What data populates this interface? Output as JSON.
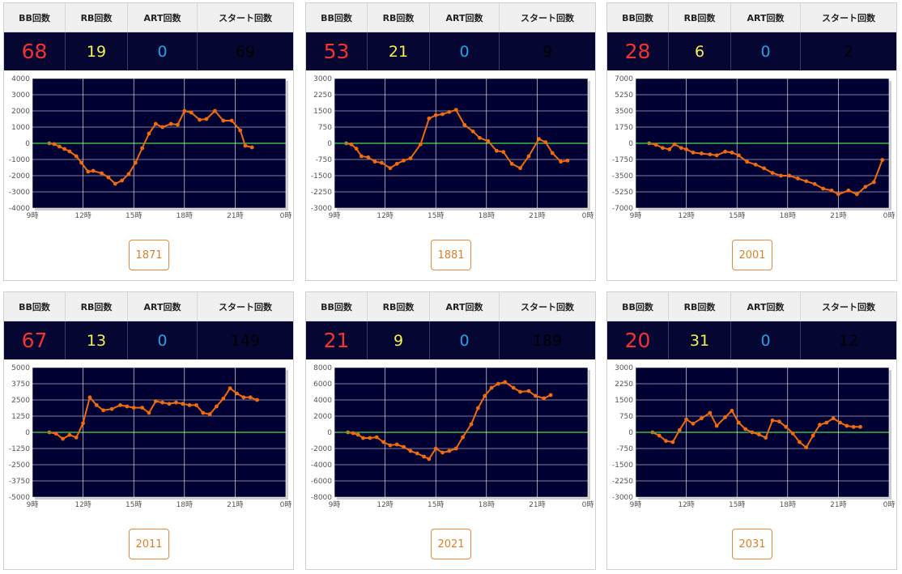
{
  "headers": {
    "bb": "BB回数",
    "rb": "RB回数",
    "art": "ART回数",
    "start": "スタート回数"
  },
  "colors": {
    "plot_bg": "#000033",
    "line": "#f06a10",
    "zero_line": "#44dd44",
    "button": "#e38a3c",
    "bb": "#f2332f",
    "rb": "#f3f04f",
    "art": "#27a0e8",
    "start": "#35e83e"
  },
  "cards": [
    {
      "id": "1871",
      "bb": "68",
      "rb": "19",
      "art": "0",
      "start": "69",
      "button_label": "1871"
    },
    {
      "id": "1881",
      "bb": "53",
      "rb": "21",
      "art": "0",
      "start": "9",
      "button_label": "1881"
    },
    {
      "id": "2001",
      "bb": "28",
      "rb": "6",
      "art": "0",
      "start": "2",
      "button_label": "2001"
    },
    {
      "id": "2011",
      "bb": "67",
      "rb": "13",
      "art": "0",
      "start": "149",
      "button_label": "2011"
    },
    {
      "id": "2021",
      "bb": "21",
      "rb": "9",
      "art": "0",
      "start": "189",
      "button_label": "2021"
    },
    {
      "id": "2031",
      "bb": "20",
      "rb": "31",
      "art": "0",
      "start": "12",
      "button_label": "2031"
    }
  ],
  "chart_data": [
    {
      "type": "line",
      "title": "",
      "xlabel": "",
      "ylabel": "",
      "xlim": [
        9,
        24
      ],
      "x_ticks": [
        "9時",
        "12時",
        "15時",
        "18時",
        "21時",
        "0時"
      ],
      "ylim": [
        -4000,
        4000
      ],
      "y_ticks": [
        "4000",
        "3000",
        "2000",
        "1000",
        "0",
        "-1000",
        "-2000",
        "-3000",
        "-4000"
      ],
      "x": [
        10.0,
        10.3,
        10.6,
        10.9,
        11.2,
        11.6,
        11.9,
        12.3,
        12.6,
        13.1,
        13.5,
        13.9,
        14.3,
        14.7,
        15.1,
        15.5,
        15.9,
        16.3,
        16.7,
        17.2,
        17.6,
        18.0,
        18.4,
        18.9,
        19.3,
        19.8,
        20.3,
        20.8,
        21.3,
        21.6,
        22.0
      ],
      "values": [
        0,
        -50,
        -200,
        -350,
        -500,
        -800,
        -1200,
        -1750,
        -1700,
        -1850,
        -2100,
        -2500,
        -2300,
        -1900,
        -1200,
        -300,
        600,
        1200,
        1000,
        1200,
        1150,
        2000,
        1900,
        1450,
        1500,
        2000,
        1400,
        1400,
        800,
        -150,
        -250
      ]
    },
    {
      "type": "line",
      "title": "",
      "xlabel": "",
      "ylabel": "",
      "xlim": [
        9,
        24
      ],
      "x_ticks": [
        "9時",
        "12時",
        "15時",
        "18時",
        "21時",
        "0時"
      ],
      "ylim": [
        -3000,
        3000
      ],
      "y_ticks": [
        "3000",
        "2250",
        "1500",
        "750",
        "0",
        "-750",
        "-1500",
        "-2250",
        "-3000"
      ],
      "x": [
        9.7,
        10.0,
        10.3,
        10.6,
        11.0,
        11.4,
        11.8,
        12.3,
        12.7,
        13.1,
        13.5,
        14.1,
        14.6,
        15.0,
        15.4,
        15.8,
        16.2,
        16.7,
        17.2,
        17.6,
        18.1,
        18.6,
        19.0,
        19.5,
        20.0,
        20.5,
        21.1,
        21.5,
        21.9,
        22.4,
        22.8
      ],
      "values": [
        0,
        -50,
        -250,
        -600,
        -650,
        -850,
        -900,
        -1150,
        -950,
        -800,
        -700,
        -50,
        1150,
        1300,
        1350,
        1450,
        1550,
        850,
        550,
        250,
        100,
        -350,
        -400,
        -950,
        -1150,
        -600,
        200,
        50,
        -450,
        -850,
        -800
      ]
    },
    {
      "type": "line",
      "title": "",
      "xlabel": "",
      "ylabel": "",
      "xlim": [
        9,
        24
      ],
      "x_ticks": [
        "9時",
        "12時",
        "15時",
        "18時",
        "21時",
        "0時"
      ],
      "ylim": [
        -7000,
        7000
      ],
      "y_ticks": [
        "7000",
        "5250",
        "3500",
        "1750",
        "0",
        "-1750",
        "-3500",
        "-5250",
        "-7000"
      ],
      "x": [
        9.8,
        10.2,
        10.6,
        11.0,
        11.3,
        11.7,
        12.0,
        12.4,
        12.9,
        13.4,
        13.8,
        14.3,
        14.7,
        15.1,
        15.6,
        16.1,
        16.6,
        17.1,
        17.6,
        18.1,
        18.6,
        19.1,
        19.6,
        20.1,
        20.6,
        21.0,
        21.6,
        22.1,
        22.6,
        23.1,
        23.6
      ],
      "values": [
        0,
        -150,
        -500,
        -650,
        -100,
        -500,
        -650,
        -1000,
        -1100,
        -1200,
        -1300,
        -900,
        -1000,
        -1300,
        -2000,
        -2300,
        -2700,
        -3200,
        -3500,
        -3500,
        -3800,
        -4100,
        -4400,
        -4900,
        -5100,
        -5500,
        -5100,
        -5500,
        -4700,
        -4200,
        -1800
      ]
    },
    {
      "type": "line",
      "title": "",
      "xlabel": "",
      "ylabel": "",
      "xlim": [
        9,
        24
      ],
      "x_ticks": [
        "9時",
        "12時",
        "15時",
        "18時",
        "21時",
        "0時"
      ],
      "ylim": [
        -5000,
        5000
      ],
      "y_ticks": [
        "5000",
        "3750",
        "2500",
        "1250",
        "0",
        "-1250",
        "-2500",
        "-3750",
        "-5000"
      ],
      "x": [
        10.0,
        10.4,
        10.8,
        11.2,
        11.6,
        12.0,
        12.4,
        12.8,
        13.2,
        13.7,
        14.2,
        14.6,
        15.0,
        15.5,
        15.9,
        16.3,
        16.7,
        17.1,
        17.5,
        17.9,
        18.3,
        18.7,
        19.1,
        19.5,
        19.9,
        20.3,
        20.7,
        21.1,
        21.5,
        21.9,
        22.3
      ],
      "values": [
        0,
        -100,
        -500,
        -200,
        -400,
        700,
        2700,
        2100,
        1700,
        1800,
        2100,
        2000,
        1900,
        1900,
        1500,
        2400,
        2300,
        2200,
        2300,
        2200,
        2100,
        2100,
        1500,
        1400,
        2000,
        2600,
        3400,
        3000,
        2700,
        2700,
        2500
      ]
    },
    {
      "type": "line",
      "title": "",
      "xlabel": "",
      "ylabel": "",
      "xlim": [
        9,
        24
      ],
      "x_ticks": [
        "9時",
        "12時",
        "15時",
        "18時",
        "21時",
        "0時"
      ],
      "ylim": [
        -8000,
        8000
      ],
      "y_ticks": [
        "8000",
        "6000",
        "4000",
        "2000",
        "0",
        "-2000",
        "-4000",
        "-6000",
        "-8000"
      ],
      "x": [
        9.8,
        10.1,
        10.4,
        10.7,
        11.1,
        11.5,
        11.9,
        12.3,
        12.7,
        13.1,
        13.5,
        13.9,
        14.3,
        14.6,
        15.0,
        15.4,
        15.8,
        16.2,
        16.6,
        17.1,
        17.5,
        17.9,
        18.3,
        18.7,
        19.1,
        19.6,
        20.0,
        20.5,
        20.9,
        21.4,
        21.8
      ],
      "values": [
        0,
        -100,
        -300,
        -700,
        -700,
        -600,
        -1200,
        -1600,
        -1500,
        -1800,
        -2300,
        -2600,
        -3000,
        -3300,
        -2000,
        -2500,
        -2300,
        -2000,
        -600,
        1000,
        3000,
        4500,
        5500,
        6000,
        6200,
        5500,
        5000,
        5100,
        4500,
        4200,
        4600
      ]
    },
    {
      "type": "line",
      "title": "",
      "xlabel": "",
      "ylabel": "",
      "xlim": [
        9,
        24
      ],
      "x_ticks": [
        "9時",
        "12時",
        "15時",
        "18時",
        "21時",
        "0時"
      ],
      "ylim": [
        -3000,
        3000
      ],
      "y_ticks": [
        "3000",
        "2250",
        "1500",
        "750",
        "0",
        "-750",
        "-1500",
        "-2250",
        "-3000"
      ],
      "x": [
        10.0,
        10.4,
        10.8,
        11.2,
        11.6,
        12.0,
        12.4,
        12.9,
        13.4,
        13.8,
        14.3,
        14.7,
        15.1,
        15.5,
        15.9,
        16.3,
        16.7,
        17.1,
        17.5,
        17.9,
        18.3,
        18.7,
        19.1,
        19.5,
        19.9,
        20.3,
        20.7,
        21.1,
        21.5,
        21.9,
        22.3
      ],
      "values": [
        0,
        -150,
        -400,
        -450,
        100,
        600,
        400,
        650,
        900,
        300,
        700,
        1000,
        450,
        150,
        0,
        -100,
        -250,
        550,
        500,
        250,
        -50,
        -450,
        -700,
        -150,
        350,
        450,
        650,
        450,
        300,
        250,
        250
      ]
    }
  ]
}
